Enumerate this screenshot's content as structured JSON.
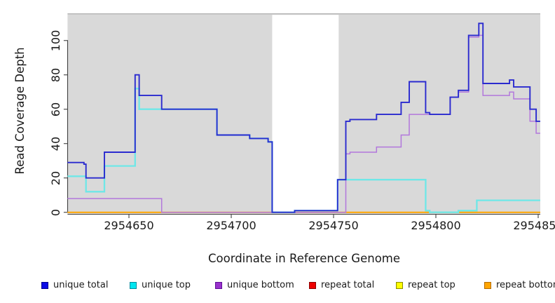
{
  "figure": {
    "x_axis_title": "Coordinate in Reference Genome",
    "y_axis_title": "Read Coverage Depth"
  },
  "chart_data": {
    "type": "line",
    "subtype": "step-coverage-plot",
    "title": "",
    "xlabel": "Coordinate in Reference Genome",
    "ylabel": "Read Coverage Depth",
    "x_range": [
      2954620,
      2954851
    ],
    "y_range": [
      0,
      115
    ],
    "x_ticks": [
      2954650,
      2954700,
      2954750,
      2954800,
      2954850
    ],
    "x_tick_labels": [
      "2954650",
      "2954700",
      "2954750",
      "2954800",
      "2954850"
    ],
    "y_ticks": [
      0,
      20,
      40,
      60,
      80,
      100
    ],
    "y_tick_labels": [
      "0",
      "20",
      "40",
      "60",
      "80",
      "100"
    ],
    "grid": false,
    "plot_bg": "#d9d9d9",
    "mask_band": {
      "x1": 2954720,
      "x2": 2954752.5,
      "color": "#ffffff"
    },
    "legend_position": "bottom",
    "x_end": 2954851,
    "series": [
      {
        "name": "unique total",
        "line_color": "#2a2acf",
        "line_width": 1.9,
        "points": [
          [
            2954620,
            29
          ],
          [
            2954628,
            28
          ],
          [
            2954629,
            20
          ],
          [
            2954638,
            35
          ],
          [
            2954653,
            80
          ],
          [
            2954655,
            68
          ],
          [
            2954666,
            60
          ],
          [
            2954693,
            45
          ],
          [
            2954709,
            43
          ],
          [
            2954718,
            41
          ],
          [
            2954720,
            0
          ],
          [
            2954731,
            1
          ],
          [
            2954752,
            19
          ],
          [
            2954756,
            53
          ],
          [
            2954758,
            54
          ],
          [
            2954771,
            57
          ],
          [
            2954783,
            64
          ],
          [
            2954787,
            76
          ],
          [
            2954795,
            58
          ],
          [
            2954797,
            57
          ],
          [
            2954807,
            67
          ],
          [
            2954811,
            71
          ],
          [
            2954816,
            103
          ],
          [
            2954821,
            110
          ],
          [
            2954823,
            75
          ],
          [
            2954836,
            77
          ],
          [
            2954838,
            73
          ],
          [
            2954846,
            60
          ],
          [
            2954849,
            53
          ]
        ]
      },
      {
        "name": "unique top",
        "line_color": "#6fe7e7",
        "line_width": 2.3,
        "points": [
          [
            2954620,
            21
          ],
          [
            2954629,
            12
          ],
          [
            2954638,
            27
          ],
          [
            2954653,
            72
          ],
          [
            2954655,
            60
          ],
          [
            2954693,
            45
          ],
          [
            2954709,
            43
          ],
          [
            2954718,
            41
          ],
          [
            2954720,
            0
          ],
          [
            2954731,
            1
          ],
          [
            2954752,
            19
          ],
          [
            2954795,
            1
          ],
          [
            2954797,
            0
          ],
          [
            2954811,
            1
          ],
          [
            2954820,
            7
          ]
        ]
      },
      {
        "name": "unique bottom",
        "line_color": "#b277dc",
        "line_width": 1.5,
        "points": [
          [
            2954620,
            8
          ],
          [
            2954666,
            0
          ],
          [
            2954756,
            34
          ],
          [
            2954758,
            35
          ],
          [
            2954771,
            38
          ],
          [
            2954783,
            45
          ],
          [
            2954787,
            57
          ],
          [
            2954807,
            67
          ],
          [
            2954811,
            70
          ],
          [
            2954816,
            102
          ],
          [
            2954821,
            103
          ],
          [
            2954823,
            68
          ],
          [
            2954836,
            70
          ],
          [
            2954838,
            66
          ],
          [
            2954846,
            53
          ],
          [
            2954849,
            46
          ]
        ]
      },
      {
        "name": "repeat total",
        "line_color": "#e04050",
        "line_width": 1.5,
        "points": [
          [
            2954620,
            0
          ]
        ]
      },
      {
        "name": "repeat top",
        "line_color": "#f2f20a",
        "line_width": 1.5,
        "points": [
          [
            2954620,
            0
          ]
        ]
      },
      {
        "name": "repeat bottom",
        "line_color": "#ffa500",
        "line_width": 2.0,
        "points": [
          [
            2954620,
            0
          ]
        ]
      }
    ]
  },
  "legend": {
    "items": [
      {
        "label": "unique total",
        "swatch": "#0a0ae6",
        "border": "#000090"
      },
      {
        "label": "unique top",
        "swatch": "#00e6f0",
        "border": "#008b9e"
      },
      {
        "label": "unique bottom",
        "swatch": "#9932cc",
        "border": "#5e0d96"
      },
      {
        "label": "repeat total",
        "swatch": "#ee0000",
        "border": "#8b0000"
      },
      {
        "label": "repeat top",
        "swatch": "#ffff00",
        "border": "#8b8b00"
      },
      {
        "label": "repeat bottom",
        "swatch": "#ffa500",
        "border": "#b36b00"
      }
    ]
  }
}
